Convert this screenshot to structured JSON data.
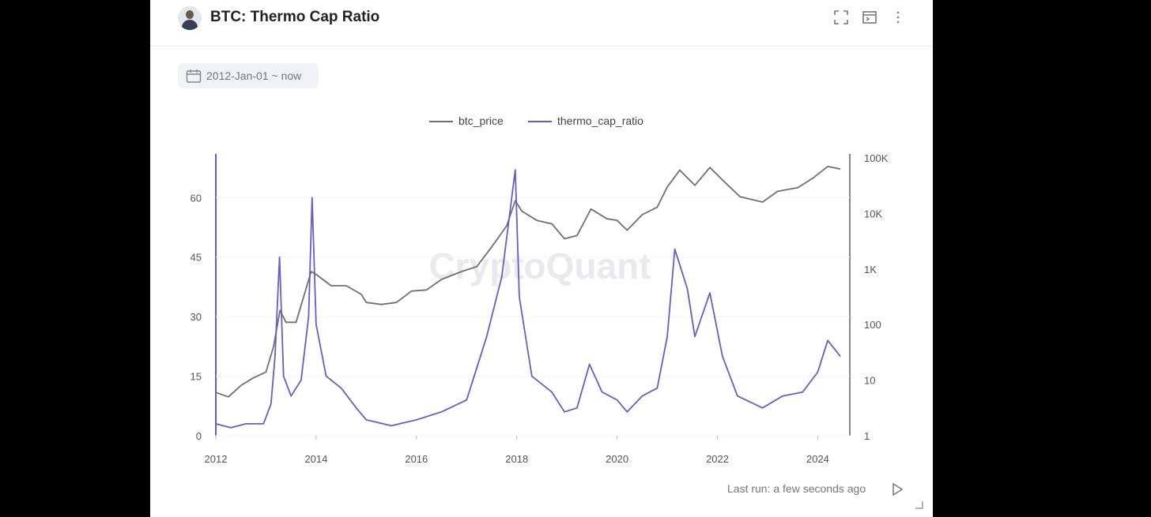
{
  "header": {
    "title": "BTC: Thermo Cap Ratio"
  },
  "date_range": {
    "label": "2012-Jan-01 ~ now"
  },
  "footer": {
    "last_run": "Last run: a few seconds ago"
  },
  "icons": [
    "avatar",
    "fullscreen-icon",
    "table-view-icon",
    "more-vertical-icon",
    "calendar-icon",
    "play-icon",
    "resize-handle-icon"
  ],
  "colors": {
    "btc_price": "#707070",
    "thermo_cap_ratio": "#6a5acd",
    "watermark": "#e9e9ef"
  },
  "chart_data": {
    "type": "line",
    "watermark": "CryptoQuant",
    "x_ticks": [
      "2012",
      "2014",
      "2016",
      "2018",
      "2020",
      "2022",
      "2024"
    ],
    "y_left_ticks": [
      "0",
      "15",
      "30",
      "45",
      "60"
    ],
    "y_right_ticks": [
      "1",
      "10",
      "100",
      "1K",
      "10K",
      "100K"
    ],
    "ylim_left": [
      0,
      70
    ],
    "ylim_right_log10": [
      0,
      5
    ],
    "legend_position": "top-center",
    "series": [
      {
        "name": "btc_price",
        "axis": "right-log",
        "color": "#707070",
        "points": [
          [
            2012.0,
            6
          ],
          [
            2012.25,
            5
          ],
          [
            2012.5,
            8
          ],
          [
            2012.75,
            11
          ],
          [
            2013.0,
            14
          ],
          [
            2013.15,
            40
          ],
          [
            2013.28,
            180
          ],
          [
            2013.4,
            110
          ],
          [
            2013.6,
            110
          ],
          [
            2013.9,
            900
          ],
          [
            2014.0,
            800
          ],
          [
            2014.3,
            500
          ],
          [
            2014.6,
            500
          ],
          [
            2014.9,
            350
          ],
          [
            2015.0,
            250
          ],
          [
            2015.3,
            230
          ],
          [
            2015.6,
            250
          ],
          [
            2015.9,
            400
          ],
          [
            2016.2,
            420
          ],
          [
            2016.5,
            650
          ],
          [
            2016.9,
            900
          ],
          [
            2017.2,
            1100
          ],
          [
            2017.5,
            2500
          ],
          [
            2017.8,
            6000
          ],
          [
            2017.97,
            17000
          ],
          [
            2018.1,
            11000
          ],
          [
            2018.4,
            7500
          ],
          [
            2018.7,
            6500
          ],
          [
            2018.95,
            3500
          ],
          [
            2019.2,
            4000
          ],
          [
            2019.48,
            12000
          ],
          [
            2019.8,
            8000
          ],
          [
            2020.0,
            7500
          ],
          [
            2020.2,
            5000
          ],
          [
            2020.5,
            9500
          ],
          [
            2020.8,
            13000
          ],
          [
            2021.0,
            30000
          ],
          [
            2021.25,
            60000
          ],
          [
            2021.55,
            32000
          ],
          [
            2021.85,
            67000
          ],
          [
            2022.1,
            40000
          ],
          [
            2022.45,
            20000
          ],
          [
            2022.9,
            16000
          ],
          [
            2023.2,
            25000
          ],
          [
            2023.6,
            29000
          ],
          [
            2023.9,
            43000
          ],
          [
            2024.2,
            70000
          ],
          [
            2024.45,
            63000
          ]
        ]
      },
      {
        "name": "thermo_cap_ratio",
        "axis": "left",
        "color": "#6a5acd",
        "points": [
          [
            2012.0,
            3
          ],
          [
            2012.3,
            2
          ],
          [
            2012.6,
            3
          ],
          [
            2012.95,
            3
          ],
          [
            2013.1,
            8
          ],
          [
            2013.18,
            20
          ],
          [
            2013.27,
            45
          ],
          [
            2013.35,
            15
          ],
          [
            2013.5,
            10
          ],
          [
            2013.7,
            14
          ],
          [
            2013.85,
            30
          ],
          [
            2013.92,
            60
          ],
          [
            2014.0,
            28
          ],
          [
            2014.2,
            15
          ],
          [
            2014.5,
            12
          ],
          [
            2014.8,
            7
          ],
          [
            2015.0,
            4
          ],
          [
            2015.5,
            2.5
          ],
          [
            2016.0,
            4
          ],
          [
            2016.5,
            6
          ],
          [
            2017.0,
            9
          ],
          [
            2017.4,
            25
          ],
          [
            2017.7,
            40
          ],
          [
            2017.97,
            67
          ],
          [
            2018.05,
            35
          ],
          [
            2018.3,
            15
          ],
          [
            2018.7,
            11
          ],
          [
            2018.95,
            6
          ],
          [
            2019.2,
            7
          ],
          [
            2019.45,
            18
          ],
          [
            2019.7,
            11
          ],
          [
            2020.0,
            9
          ],
          [
            2020.2,
            6
          ],
          [
            2020.5,
            10
          ],
          [
            2020.8,
            12
          ],
          [
            2021.0,
            25
          ],
          [
            2021.15,
            47
          ],
          [
            2021.4,
            37
          ],
          [
            2021.55,
            25
          ],
          [
            2021.85,
            36
          ],
          [
            2022.1,
            20
          ],
          [
            2022.4,
            10
          ],
          [
            2022.9,
            7
          ],
          [
            2023.3,
            10
          ],
          [
            2023.7,
            11
          ],
          [
            2024.0,
            16
          ],
          [
            2024.2,
            24
          ],
          [
            2024.45,
            20
          ]
        ]
      }
    ]
  }
}
